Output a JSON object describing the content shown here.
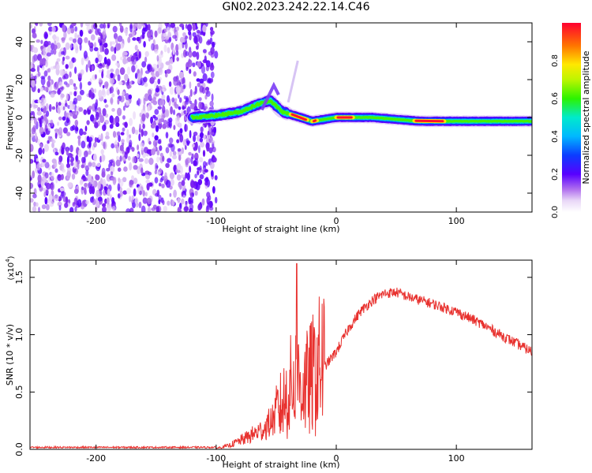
{
  "figure": {
    "title": "GN02.2023.242.22.14.C46"
  },
  "chart_data": [
    {
      "type": "heatmap",
      "name": "spectrogram",
      "xlabel": "Height of straight line (km)",
      "ylabel": "Frequency (Hz)",
      "xlim": [
        -255,
        163
      ],
      "ylim": [
        -50,
        50
      ],
      "xticks": [
        -200,
        -100,
        0,
        100
      ],
      "yticks": [
        -40,
        -20,
        0,
        20,
        40
      ],
      "colorbar": {
        "label": "Normalized spectral amplitude",
        "range": [
          0.0,
          1.0
        ],
        "ticks": [
          "0.0",
          "0.2",
          "0.4",
          "0.6",
          "0.8"
        ],
        "colormap": "rainbow-with-white-low"
      },
      "features": {
        "noise_region_x": [
          -255,
          -100
        ],
        "main_ridge": [
          {
            "x": -120,
            "y": 0
          },
          {
            "x": -100,
            "y": 1
          },
          {
            "x": -80,
            "y": 3
          },
          {
            "x": -65,
            "y": 7
          },
          {
            "x": -55,
            "y": 9
          },
          {
            "x": -45,
            "y": 3
          },
          {
            "x": -30,
            "y": 0
          },
          {
            "x": -20,
            "y": -2
          },
          {
            "x": 0,
            "y": 0
          },
          {
            "x": 30,
            "y": 0
          },
          {
            "x": 70,
            "y": -2
          },
          {
            "x": 90,
            "y": -2
          },
          {
            "x": 120,
            "y": -2
          },
          {
            "x": 163,
            "y": -2
          }
        ],
        "peak_segments_x": [
          [
            -38,
            -24
          ],
          [
            -20,
            -16
          ],
          [
            0,
            14
          ],
          [
            65,
            90
          ]
        ]
      },
      "grid": false
    },
    {
      "type": "line",
      "name": "snr",
      "xlabel": "Height of straight line (km)",
      "ylabel": "SNR (10 * v/v)",
      "yscale_label": "(x10",
      "yscale_exp": "4",
      "xlim": [
        -255,
        163
      ],
      "ylim": [
        0,
        1.65
      ],
      "xticks": [
        -200,
        -100,
        0,
        100
      ],
      "yticks": [
        "0.0",
        "0.5",
        "1.0",
        "1.5"
      ],
      "line_color": "#e8312e",
      "series": [
        {
          "envelope": [
            {
              "x": -255,
              "y": 0.01
            },
            {
              "x": -100,
              "y": 0.01
            },
            {
              "x": -90,
              "y": 0.03
            },
            {
              "x": -75,
              "y": 0.1
            },
            {
              "x": -60,
              "y": 0.18
            },
            {
              "x": -45,
              "y": 0.35
            },
            {
              "x": -35,
              "y": 0.55
            },
            {
              "x": -25,
              "y": 0.5
            },
            {
              "x": -15,
              "y": 0.65
            },
            {
              "x": 0,
              "y": 0.85
            },
            {
              "x": 10,
              "y": 1.05
            },
            {
              "x": 20,
              "y": 1.2
            },
            {
              "x": 30,
              "y": 1.3
            },
            {
              "x": 40,
              "y": 1.36
            },
            {
              "x": 50,
              "y": 1.37
            },
            {
              "x": 60,
              "y": 1.33
            },
            {
              "x": 80,
              "y": 1.27
            },
            {
              "x": 100,
              "y": 1.2
            },
            {
              "x": 120,
              "y": 1.1
            },
            {
              "x": 140,
              "y": 0.98
            },
            {
              "x": 163,
              "y": 0.85
            }
          ],
          "spike_region_x": [
            -50,
            -10
          ],
          "max_spike": {
            "x": -33,
            "y": 1.62
          }
        }
      ],
      "grid": false
    }
  ]
}
